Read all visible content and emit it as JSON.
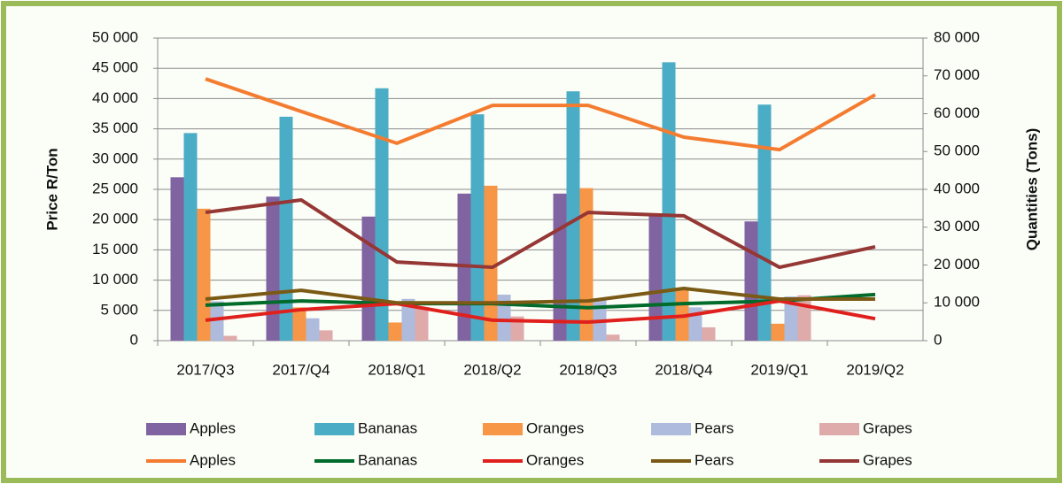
{
  "chart_data": {
    "type": "combo",
    "y_label": "Price R/Ton",
    "y2_label": "Quantities (Tons)",
    "categories": [
      "2017/Q3",
      "2017/Q4",
      "2018/Q1",
      "2018/Q2",
      "2018/Q3",
      "2018/Q4",
      "2019/Q1",
      "2019/Q2"
    ],
    "ylim": [
      0,
      50000
    ],
    "yticks": [
      0,
      {
        "value": 5000,
        "label": "5 000"
      },
      {
        "value": 10000,
        "label": "10 000"
      },
      {
        "value": 15000,
        "label": "15 000"
      },
      {
        "value": 20000,
        "label": "20 000"
      },
      {
        "value": 25000,
        "label": "25 000"
      },
      {
        "value": 30000,
        "label": "30 000"
      },
      {
        "value": 35000,
        "label": "35 000"
      },
      {
        "value": 40000,
        "label": "40 000"
      },
      {
        "value": 45000,
        "label": "45 000"
      },
      {
        "value": 50000,
        "label": "50 000"
      }
    ],
    "y2lim": [
      0,
      80000
    ],
    "y2ticks": [
      0,
      {
        "value": 10000,
        "label": "10 000"
      },
      {
        "value": 20000,
        "label": "20 000"
      },
      {
        "value": 30000,
        "label": "30 000"
      },
      {
        "value": 40000,
        "label": "40 000"
      },
      {
        "value": 50000,
        "label": "50 000"
      },
      {
        "value": 60000,
        "label": "60 000"
      },
      {
        "value": 70000,
        "label": "70 000"
      },
      {
        "value": 80000,
        "label": "80 000"
      }
    ],
    "grid": true,
    "legend": "bottom",
    "series": [
      {
        "name": "Apples",
        "type": "bar",
        "color": "#8064a2",
        "values": [
          27000,
          23800,
          20500,
          24300,
          24300,
          21000,
          19700,
          null
        ]
      },
      {
        "name": "Bananas",
        "type": "bar",
        "color": "#4bacc6",
        "values": [
          34300,
          37000,
          41700,
          37400,
          41200,
          46000,
          39000,
          null
        ]
      },
      {
        "name": "Oranges",
        "type": "bar",
        "color": "#f79646",
        "values": [
          21800,
          5500,
          3000,
          25600,
          25200,
          8500,
          2800,
          null
        ]
      },
      {
        "name": "Pears",
        "type": "bar",
        "color": "#aebbdc",
        "values": [
          6500,
          3700,
          6900,
          7600,
          7000,
          5500,
          7300,
          null
        ]
      },
      {
        "name": "Grapes",
        "type": "bar",
        "color": "#dfaaaa",
        "values": [
          800,
          1700,
          5500,
          4000,
          1000,
          2200,
          7500,
          null
        ]
      },
      {
        "name": "Apples",
        "type": "line",
        "axis": "y2",
        "color": "#f47c30",
        "values": [
          69200,
          60600,
          52200,
          62200,
          62200,
          53800,
          50500,
          65000
        ]
      },
      {
        "name": "Bananas",
        "type": "line",
        "axis": "y2",
        "color": "#006b2a",
        "values": [
          9400,
          10500,
          9800,
          9800,
          8700,
          9800,
          10500,
          12200
        ]
      },
      {
        "name": "Oranges",
        "type": "line",
        "axis": "y2",
        "color": "#e0201c",
        "values": [
          5400,
          8200,
          9800,
          5400,
          4900,
          6500,
          10500,
          5800
        ]
      },
      {
        "name": "Pears",
        "type": "line",
        "axis": "y2",
        "color": "#7a5a14",
        "values": [
          11000,
          13300,
          10000,
          10000,
          10500,
          13800,
          11000,
          11000
        ]
      },
      {
        "name": "Grapes",
        "type": "line",
        "axis": "y2",
        "color": "#953735",
        "values": [
          33900,
          37200,
          20800,
          19400,
          33900,
          33000,
          19400,
          24800
        ]
      }
    ]
  }
}
